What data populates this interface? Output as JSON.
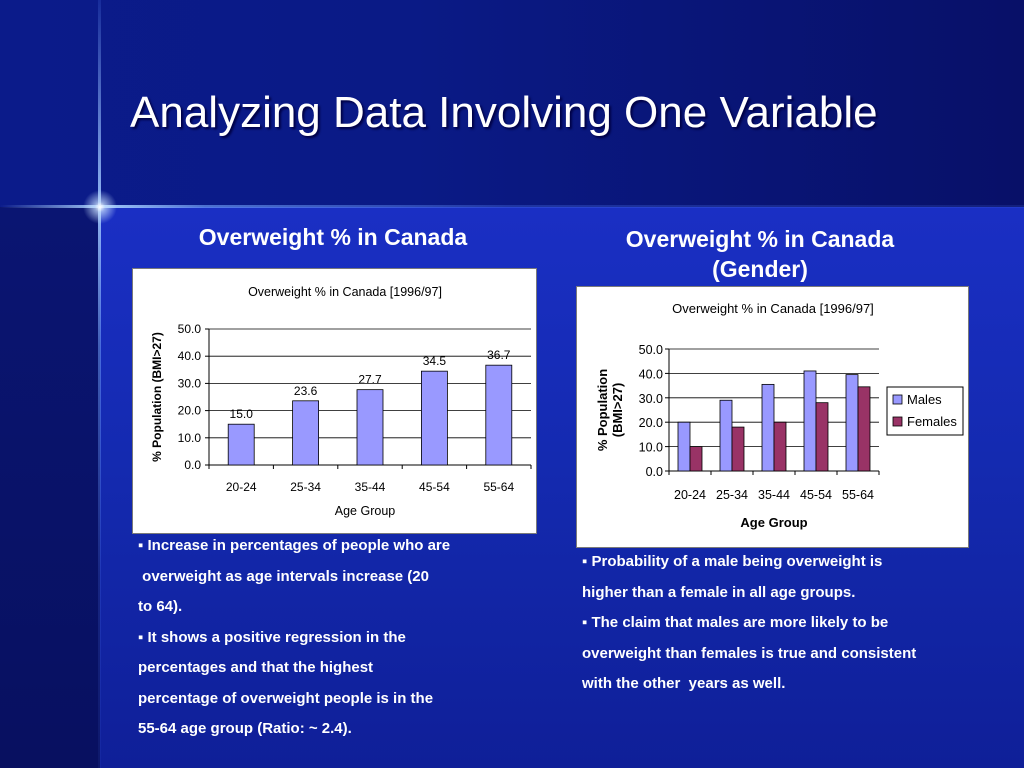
{
  "slide": {
    "title": "Analyzing Data Involving One Variable",
    "left_subtitle": "Overweight % in Canada",
    "right_subtitle_line1": "Overweight % in Canada",
    "right_subtitle_line2": "(Gender)",
    "left_bullets": [
      "▪ Increase in percentages of people who are",
      " overweight as age intervals increase (20",
      "to 64).",
      "▪ It shows a positive regression in the",
      "percentages and that the highest",
      "percentage of overweight people is in the",
      "55-64 age group (Ratio: ~ 2.4)."
    ],
    "right_bullets": [
      "▪ Probability of a male being overweight is",
      "higher than a female in all age groups.",
      "▪ The claim that males are more likely to be",
      "overweight than females is true and consistent",
      "with the other  years as well."
    ],
    "colors": {
      "males": "#9999ff",
      "females": "#993366",
      "background": "#1428b4"
    }
  },
  "chart_data": [
    {
      "type": "bar",
      "title": "Overweight % in Canada [1996/97]",
      "xlabel": "Age Group",
      "ylabel": "% Population (BMI>27)",
      "categories": [
        "20-24",
        "25-34",
        "35-44",
        "45-54",
        "55-64"
      ],
      "values": [
        15.0,
        23.6,
        27.7,
        34.5,
        36.7
      ],
      "value_labels": [
        "15.0",
        "23.6",
        "27.7",
        "34.5",
        "36.7"
      ],
      "ylim": [
        0,
        50
      ],
      "ticks": [
        "0.0",
        "10.0",
        "20.0",
        "30.0",
        "40.0",
        "50.0"
      ],
      "grid": true,
      "legend": "none"
    },
    {
      "type": "bar",
      "title": "Overweight % in Canada [1996/97]",
      "xlabel": "Age Group",
      "ylabel_line1": "% Population",
      "ylabel_line2": "(BMI>27)",
      "categories": [
        "20-24",
        "25-34",
        "35-44",
        "45-54",
        "55-64"
      ],
      "series": [
        {
          "name": "Males",
          "values": [
            20,
            29,
            35.5,
            41,
            39.5
          ]
        },
        {
          "name": "Females",
          "values": [
            10,
            18,
            20,
            28,
            34.5
          ]
        }
      ],
      "ylim": [
        0,
        50
      ],
      "ticks": [
        "0.0",
        "10.0",
        "20.0",
        "30.0",
        "40.0",
        "50.0"
      ],
      "grid": true,
      "legend": "right"
    }
  ]
}
